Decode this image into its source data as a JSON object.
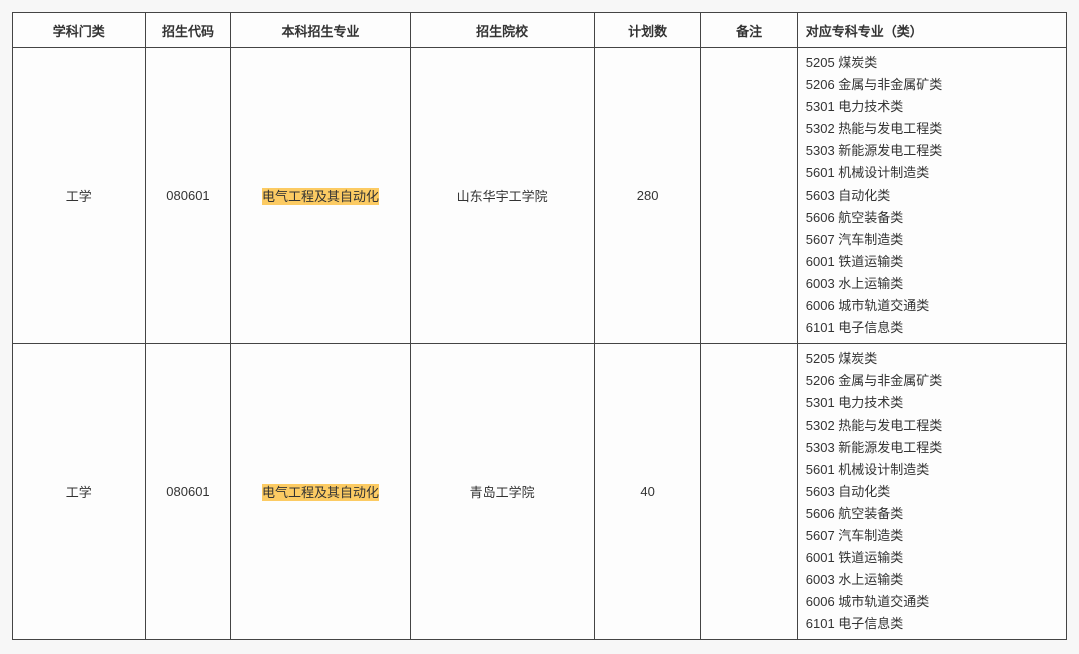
{
  "columns": [
    {
      "key": "category",
      "label": "学科门类",
      "class": "col-category"
    },
    {
      "key": "code",
      "label": "招生代码",
      "class": "col-code"
    },
    {
      "key": "major",
      "label": "本科招生专业",
      "class": "col-major"
    },
    {
      "key": "school",
      "label": "招生院校",
      "class": "col-school"
    },
    {
      "key": "plan",
      "label": "计划数",
      "class": "col-plan"
    },
    {
      "key": "remark",
      "label": "备注",
      "class": "col-remark"
    },
    {
      "key": "specialty",
      "label": "对应专科专业（类）",
      "class": "col-specialty"
    }
  ],
  "highlight_color": "#fccb63",
  "border_color": "#444",
  "background_color": "#fdfdfd",
  "page_background": "#f7f7f7",
  "font_size": 13,
  "specialty_codes": [
    "5205 煤炭类",
    "5206 金属与非金属矿类",
    "5301 电力技术类",
    "5302 热能与发电工程类",
    "5303 新能源发电工程类",
    "5601 机械设计制造类",
    "5603 自动化类",
    "5606 航空装备类",
    "5607 汽车制造类",
    "6001 铁道运输类",
    "6003 水上运输类",
    "6006 城市轨道交通类",
    "6101 电子信息类"
  ],
  "rows": [
    {
      "category": "工学",
      "code": "080601",
      "major": "电气工程及其自动化",
      "major_highlighted": true,
      "school": "山东华宇工学院",
      "plan": "280",
      "remark": ""
    },
    {
      "category": "工学",
      "code": "080601",
      "major": "电气工程及其自动化",
      "major_highlighted": true,
      "school": "青岛工学院",
      "plan": "40",
      "remark": ""
    }
  ]
}
